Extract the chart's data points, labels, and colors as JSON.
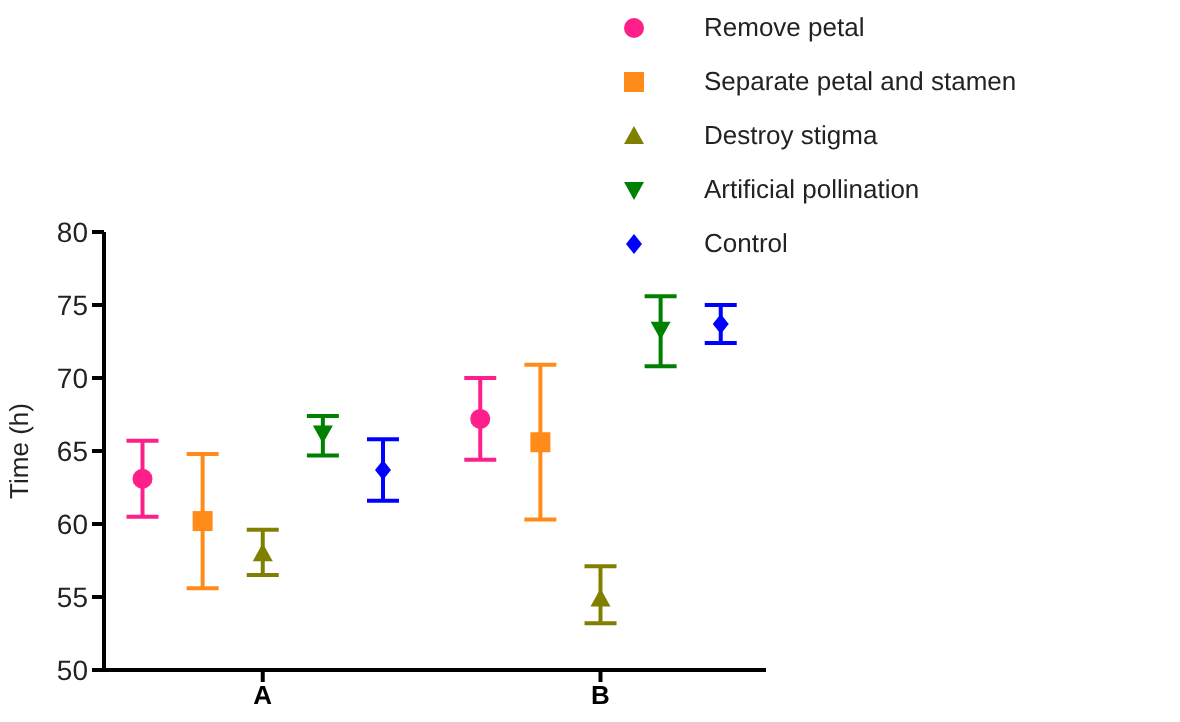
{
  "chart_data": {
    "type": "scatter",
    "ylabel": "Time (h)",
    "categories": [
      "A",
      "B"
    ],
    "series": [
      {
        "name": "Remove petal",
        "color": "#ff1f8a",
        "marker": "circle",
        "values": [
          63.1,
          67.2
        ],
        "errors": [
          [
            60.5,
            65.7
          ],
          [
            64.4,
            70.0
          ]
        ]
      },
      {
        "name": "Separate petal and stamen",
        "color": "#ff8c1a",
        "marker": "square",
        "values": [
          60.2,
          65.6
        ],
        "errors": [
          [
            55.6,
            64.8
          ],
          [
            60.3,
            70.9
          ]
        ]
      },
      {
        "name": "Destroy stigma",
        "color": "#808000",
        "marker": "triangle",
        "values": [
          58.0,
          54.9
        ],
        "errors": [
          [
            56.5,
            59.6
          ],
          [
            53.2,
            57.1
          ]
        ]
      },
      {
        "name": "Artificial pollination",
        "color": "#008000",
        "marker": "triangle-down",
        "values": [
          66.2,
          73.3
        ],
        "errors": [
          [
            64.7,
            67.4
          ],
          [
            70.8,
            75.6
          ]
        ]
      },
      {
        "name": "Control",
        "color": "#0000ff",
        "marker": "diamond",
        "values": [
          63.7,
          73.7
        ],
        "errors": [
          [
            61.6,
            65.8
          ],
          [
            72.4,
            75.0
          ]
        ]
      }
    ],
    "ylim": [
      50,
      80
    ],
    "yticks": [
      50,
      55,
      60,
      65,
      70,
      75,
      80
    ],
    "grid": false,
    "legend": "top right"
  }
}
